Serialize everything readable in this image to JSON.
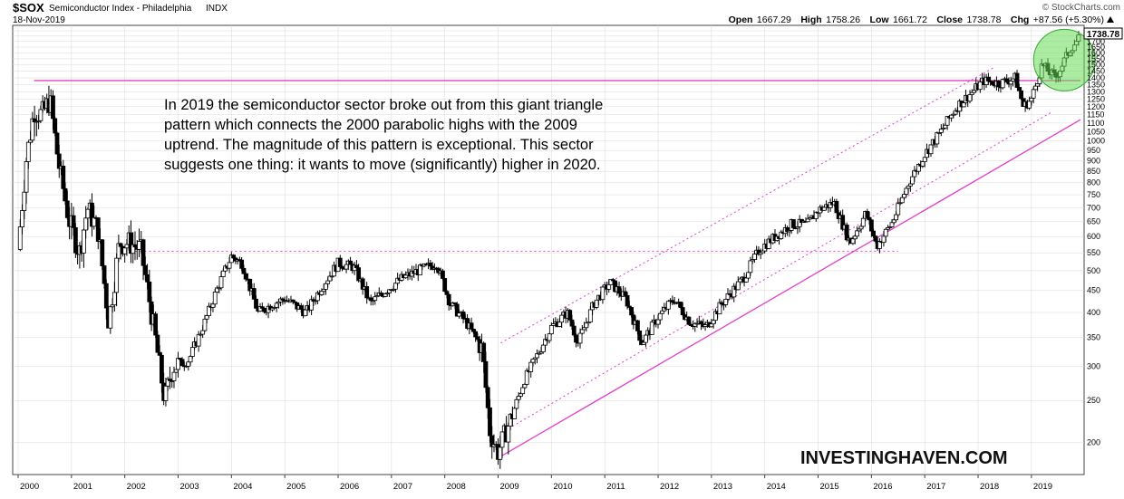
{
  "header": {
    "symbol": "$SOX",
    "name": "Semiconductor Index - Philadelphia",
    "exchange": "INDX",
    "date": "18-Nov-2019",
    "credit": "© StockCharts.com",
    "open_label": "Open",
    "open_value": "1667.29",
    "high_label": "High",
    "high_value": "1758.26",
    "low_label": "Low",
    "low_value": "1661.72",
    "close_label": "Close",
    "close_value": "1738.78",
    "chg_label": "Chg",
    "chg_value": "+87.56 (+5.30%)",
    "last_price_badge": "1738.78"
  },
  "annotation": {
    "lines": [
      "In 2019 the semiconductor sector broke out from this giant triangle",
      "pattern which connects the 2000 parabolic highs with the 2009",
      "uptrend. The magnitude of this pattern is exceptional. This sector",
      "suggests one thing: it wants to move (significantly) higher in 2020."
    ]
  },
  "watermark": "INVESTINGHAVEN.COM",
  "colors": {
    "trendline": "#e040c8",
    "circle_fill": "#66dd55",
    "candle_up": "#ffffff",
    "candle_down": "#000000",
    "grid": "#d8d8d8"
  },
  "chart_data": {
    "type": "candlestick",
    "scale": "log",
    "interval": "weekly",
    "x_range": [
      2000.0,
      2019.92
    ],
    "y_range": [
      170,
      1800
    ],
    "x_tick_labels": [
      "2000",
      "2001",
      "2002",
      "2003",
      "2004",
      "2005",
      "2006",
      "2007",
      "2008",
      "2009",
      "2010",
      "2011",
      "2012",
      "2013",
      "2014",
      "2015",
      "2016",
      "2017",
      "2018",
      "2019"
    ],
    "y_tick_labels": [
      200,
      250,
      300,
      350,
      400,
      450,
      500,
      550,
      600,
      650,
      700,
      750,
      800,
      850,
      900,
      950,
      1000,
      1050,
      1100,
      1150,
      1200,
      1250,
      1300,
      1350,
      1400,
      1450,
      1500,
      1550,
      1600,
      1650,
      1700,
      1750,
      1800
    ],
    "price_path": [
      [
        2000.0,
        560
      ],
      [
        2000.15,
        900
      ],
      [
        2000.3,
        1180
      ],
      [
        2000.45,
        1150
      ],
      [
        2000.6,
        1250
      ],
      [
        2000.75,
        900
      ],
      [
        2000.95,
        660
      ],
      [
        2001.15,
        550
      ],
      [
        2001.3,
        700
      ],
      [
        2001.5,
        620
      ],
      [
        2001.7,
        380
      ],
      [
        2001.9,
        580
      ],
      [
        2002.1,
        580
      ],
      [
        2002.3,
        560
      ],
      [
        2002.5,
        400
      ],
      [
        2002.75,
        250
      ],
      [
        2002.9,
        300
      ],
      [
        2003.2,
        310
      ],
      [
        2003.5,
        380
      ],
      [
        2003.75,
        460
      ],
      [
        2004.0,
        540
      ],
      [
        2004.2,
        520
      ],
      [
        2004.5,
        400
      ],
      [
        2004.8,
        420
      ],
      [
        2005.0,
        430
      ],
      [
        2005.4,
        400
      ],
      [
        2005.7,
        460
      ],
      [
        2006.0,
        520
      ],
      [
        2006.3,
        510
      ],
      [
        2006.6,
        420
      ],
      [
        2006.9,
        450
      ],
      [
        2007.2,
        480
      ],
      [
        2007.5,
        500
      ],
      [
        2007.85,
        520
      ],
      [
        2008.1,
        420
      ],
      [
        2008.4,
        380
      ],
      [
        2008.7,
        330
      ],
      [
        2008.85,
        210
      ],
      [
        2009.0,
        190
      ],
      [
        2009.2,
        220
      ],
      [
        2009.5,
        280
      ],
      [
        2009.8,
        330
      ],
      [
        2010.0,
        370
      ],
      [
        2010.3,
        400
      ],
      [
        2010.5,
        340
      ],
      [
        2010.8,
        420
      ],
      [
        2011.1,
        470
      ],
      [
        2011.4,
        430
      ],
      [
        2011.7,
        340
      ],
      [
        2012.0,
        390
      ],
      [
        2012.3,
        430
      ],
      [
        2012.6,
        380
      ],
      [
        2012.9,
        370
      ],
      [
        2013.2,
        420
      ],
      [
        2013.6,
        480
      ],
      [
        2013.9,
        560
      ],
      [
        2014.2,
        600
      ],
      [
        2014.5,
        640
      ],
      [
        2014.8,
        640
      ],
      [
        2015.0,
        690
      ],
      [
        2015.3,
        720
      ],
      [
        2015.6,
        580
      ],
      [
        2015.9,
        680
      ],
      [
        2016.1,
        570
      ],
      [
        2016.4,
        650
      ],
      [
        2016.7,
        800
      ],
      [
        2017.0,
        930
      ],
      [
        2017.3,
        1050
      ],
      [
        2017.6,
        1200
      ],
      [
        2017.9,
        1300
      ],
      [
        2018.1,
        1380
      ],
      [
        2018.4,
        1360
      ],
      [
        2018.7,
        1400
      ],
      [
        2018.85,
        1200
      ],
      [
        2019.0,
        1250
      ],
      [
        2019.2,
        1500
      ],
      [
        2019.45,
        1400
      ],
      [
        2019.6,
        1520
      ],
      [
        2019.75,
        1650
      ],
      [
        2019.92,
        1739
      ]
    ],
    "trendlines": [
      {
        "kind": "horizontal-resistance",
        "x": [
          2000.3,
          2019.92
        ],
        "y": [
          1380,
          1380
        ]
      },
      {
        "kind": "uptrend-support",
        "x": [
          2009.0,
          2019.92
        ],
        "y": [
          184,
          1120
        ]
      },
      {
        "kind": "channel-upper-dotted",
        "x": [
          2009.05,
          2018.3
        ],
        "y": [
          340,
          1480
        ]
      },
      {
        "kind": "channel-lower-dotted",
        "x": [
          2009.05,
          2019.4
        ],
        "y": [
          210,
          1170
        ]
      },
      {
        "kind": "horizontal-support-dotted",
        "x": [
          2002.2,
          2016.5
        ],
        "y": [
          555,
          555
        ]
      }
    ],
    "highlight_circle": {
      "x": 2019.55,
      "y": 1510
    },
    "last_close": 1738.78
  }
}
